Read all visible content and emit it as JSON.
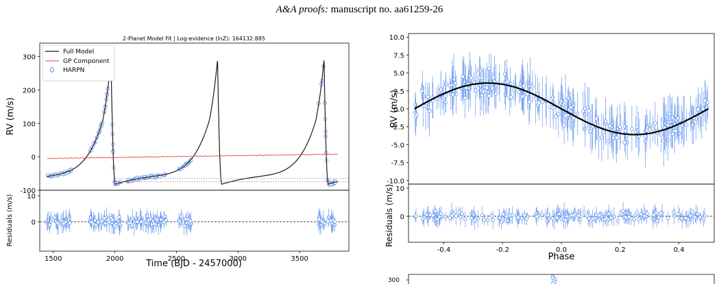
{
  "header": {
    "journal": "A&A proofs:",
    "manuscript": "manuscript no. aa61259-26"
  },
  "colors": {
    "model": "#1a1a1a",
    "gp": "#e8413a",
    "data": "#6495ed",
    "dotted_blue": "#4a7bd6"
  },
  "chart_data": [
    {
      "type": "line",
      "title": "2-Planet Model Fit | Log-evidence (lnZ): 164132.885",
      "xlabel": "Time (BJD - 2457000)",
      "ylabel": "RV (m/s)",
      "xlim": [
        1390,
        3900
      ],
      "ylim": [
        -100,
        340
      ],
      "xticks": [
        1500,
        2000,
        2500,
        3000,
        3500
      ],
      "yticks": [
        -100,
        0,
        100,
        200,
        300
      ],
      "legend_position": "top-left",
      "series": [
        {
          "name": "Full Model",
          "description": "eccentric Keplerian, period ~860 d, peaks ~305 m/s at 1970, 2830, 3700"
        },
        {
          "name": "GP Component",
          "description": "slowly varying trend from -5 to 8 m/s"
        },
        {
          "name": "HARPN",
          "style": "open circles with error bars"
        }
      ],
      "model_period_days": 865,
      "model_peak_times": [
        1968,
        2833,
        3698
      ],
      "model_peak_value": 305,
      "model_min_value": -82,
      "gp_start_value": -5,
      "gp_end_value": 8,
      "reference_lines": [
        {
          "y": -65,
          "color": "blue",
          "style": "dotted"
        },
        {
          "y": -75,
          "color": "red",
          "style": "dotted"
        }
      ],
      "observation_windows": [
        [
          1450,
          1650
        ],
        [
          1800,
          2050
        ],
        [
          2100,
          2420
        ],
        [
          2520,
          2620
        ],
        [
          3650,
          3790
        ]
      ]
    },
    {
      "type": "scatter",
      "xlabel": "Time (BJD - 2457000)",
      "ylabel": "Residuals (m/s)",
      "xlim": [
        1390,
        3900
      ],
      "ylim": [
        -10,
        10
      ],
      "yticks": [
        0,
        10
      ],
      "reference_line": 0
    },
    {
      "type": "scatter",
      "xlabel": "Phase",
      "ylabel": "RV (m/s)",
      "xlim": [
        -0.52,
        0.52
      ],
      "ylim": [
        -10.5,
        10.5
      ],
      "yticks": [
        -10.0,
        -7.5,
        -5.0,
        -2.5,
        0.0,
        2.5,
        5.0,
        7.5,
        10.0
      ],
      "model": {
        "type": "sinusoid",
        "amplitude": 3.6,
        "phase_of_max": -0.25
      }
    },
    {
      "type": "scatter",
      "xlabel": "Phase",
      "ylabel": "Residuals (m/s)",
      "xlim": [
        -0.52,
        0.52
      ],
      "ylim": [
        -10,
        10
      ],
      "xticks": [
        -0.4,
        -0.2,
        0.0,
        0.2,
        0.4
      ],
      "yticks": [
        0,
        10
      ],
      "reference_line": 0
    },
    {
      "type": "scatter",
      "ylabel": "",
      "yticks": [
        300
      ],
      "note": "partially visible panel at bottom right"
    }
  ]
}
